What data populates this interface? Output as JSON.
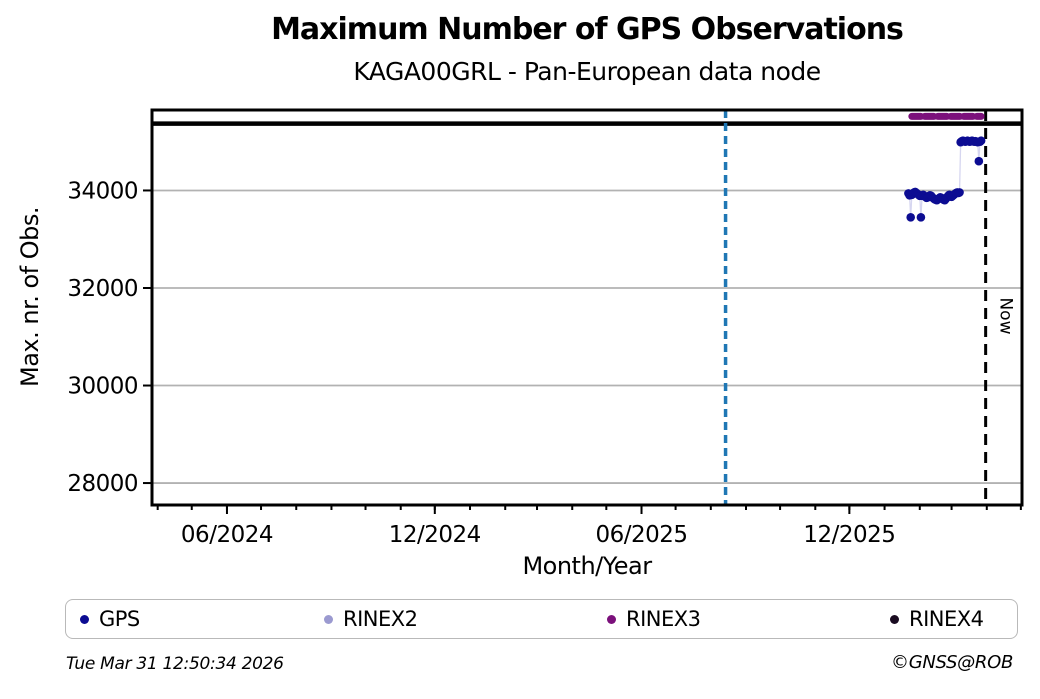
{
  "footer": {
    "timestamp": "Tue Mar 31 12:50:34 2026",
    "credit": "©GNSS@ROB"
  },
  "chart_data": {
    "type": "scatter",
    "title": "Maximum Number of GPS Observations",
    "subtitle": "KAGA00GRL - Pan-European data node",
    "xlabel": "Month/Year",
    "ylabel": "Max. nr. of Obs.",
    "xlim": [
      "2024-03-27",
      "2026-05-02"
    ],
    "ylim": [
      27550,
      35650
    ],
    "yticks": [
      28000,
      30000,
      32000,
      34000
    ],
    "xticks_major": [
      {
        "date": "2024-06-01",
        "label": "06/2024"
      },
      {
        "date": "2024-12-01",
        "label": "12/2024"
      },
      {
        "date": "2025-06-01",
        "label": "06/2025"
      },
      {
        "date": "2025-12-01",
        "label": "12/2025"
      }
    ],
    "xticks_minor": "monthly",
    "grid": "horizontal",
    "grid_color": "#b2b2b2",
    "reference_line": {
      "value": 35370,
      "color": "#000000",
      "style": "solid"
    },
    "event_line": {
      "date": "2025-08-14",
      "color": "#1f77b4",
      "style": "dashed"
    },
    "now_line": {
      "date": "2026-03-31",
      "label": "Now",
      "color": "#000000",
      "style": "dashed"
    },
    "legend": [
      "GPS",
      "RINEX2",
      "RINEX3",
      "RINEX4"
    ],
    "series": [
      {
        "name": "GPS",
        "color": "#0c0c92",
        "connector_color": "#d6d6f0",
        "render": "dots",
        "points": [
          [
            "2026-01-22",
            33940
          ],
          [
            "2026-01-23",
            33900
          ],
          [
            "2026-01-24",
            33450
          ],
          [
            "2026-01-25",
            33910
          ],
          [
            "2026-01-26",
            33940
          ],
          [
            "2026-01-27",
            33960
          ],
          [
            "2026-01-28",
            33970
          ],
          [
            "2026-01-29",
            33950
          ],
          [
            "2026-01-30",
            33930
          ],
          [
            "2026-01-31",
            33910
          ],
          [
            "2026-02-01",
            33890
          ],
          [
            "2026-02-02",
            33450
          ],
          [
            "2026-02-03",
            33890
          ],
          [
            "2026-02-04",
            33910
          ],
          [
            "2026-02-05",
            33890
          ],
          [
            "2026-02-06",
            33870
          ],
          [
            "2026-02-07",
            33850
          ],
          [
            "2026-02-08",
            33860
          ],
          [
            "2026-02-09",
            33880
          ],
          [
            "2026-02-10",
            33900
          ],
          [
            "2026-02-11",
            33890
          ],
          [
            "2026-02-12",
            33860
          ],
          [
            "2026-02-13",
            33840
          ],
          [
            "2026-02-14",
            33820
          ],
          [
            "2026-02-15",
            33810
          ],
          [
            "2026-02-16",
            33800
          ],
          [
            "2026-02-17",
            33820
          ],
          [
            "2026-02-18",
            33840
          ],
          [
            "2026-02-19",
            33860
          ],
          [
            "2026-02-20",
            33850
          ],
          [
            "2026-02-21",
            33830
          ],
          [
            "2026-02-22",
            33810
          ],
          [
            "2026-02-23",
            33800
          ],
          [
            "2026-02-24",
            33830
          ],
          [
            "2026-02-25",
            33860
          ],
          [
            "2026-02-26",
            33890
          ],
          [
            "2026-02-27",
            33910
          ],
          [
            "2026-02-28",
            33890
          ],
          [
            "2026-03-01",
            33870
          ],
          [
            "2026-03-02",
            33890
          ],
          [
            "2026-03-03",
            33910
          ],
          [
            "2026-03-04",
            33930
          ],
          [
            "2026-03-05",
            33950
          ],
          [
            "2026-03-06",
            33960
          ],
          [
            "2026-03-07",
            33950
          ],
          [
            "2026-03-08",
            33960
          ],
          [
            "2026-03-09",
            34990
          ],
          [
            "2026-03-10",
            35010
          ],
          [
            "2026-03-11",
            35020
          ],
          [
            "2026-03-12",
            35010
          ],
          [
            "2026-03-13",
            35000
          ],
          [
            "2026-03-14",
            35010
          ],
          [
            "2026-03-15",
            35020
          ],
          [
            "2026-03-16",
            35010
          ],
          [
            "2026-03-17",
            35000
          ],
          [
            "2026-03-18",
            35010
          ],
          [
            "2026-03-19",
            35020
          ],
          [
            "2026-03-20",
            35010
          ],
          [
            "2026-03-21",
            35000
          ],
          [
            "2026-03-22",
            35010
          ],
          [
            "2026-03-23",
            35000
          ],
          [
            "2026-03-24",
            34990
          ],
          [
            "2026-03-25",
            34600
          ],
          [
            "2026-03-26",
            35000
          ],
          [
            "2026-03-27",
            35020
          ]
        ]
      },
      {
        "name": "RINEX2",
        "color": "#9b9ad0",
        "render": "dots",
        "points": []
      },
      {
        "name": "RINEX3",
        "color": "#7b107b",
        "render": "thick-dashed-line",
        "points": [
          [
            "2026-01-25",
            35520
          ],
          [
            "2026-03-27",
            35520
          ]
        ]
      },
      {
        "name": "RINEX4",
        "color": "#1a0b21",
        "render": "dots",
        "points": []
      }
    ]
  }
}
